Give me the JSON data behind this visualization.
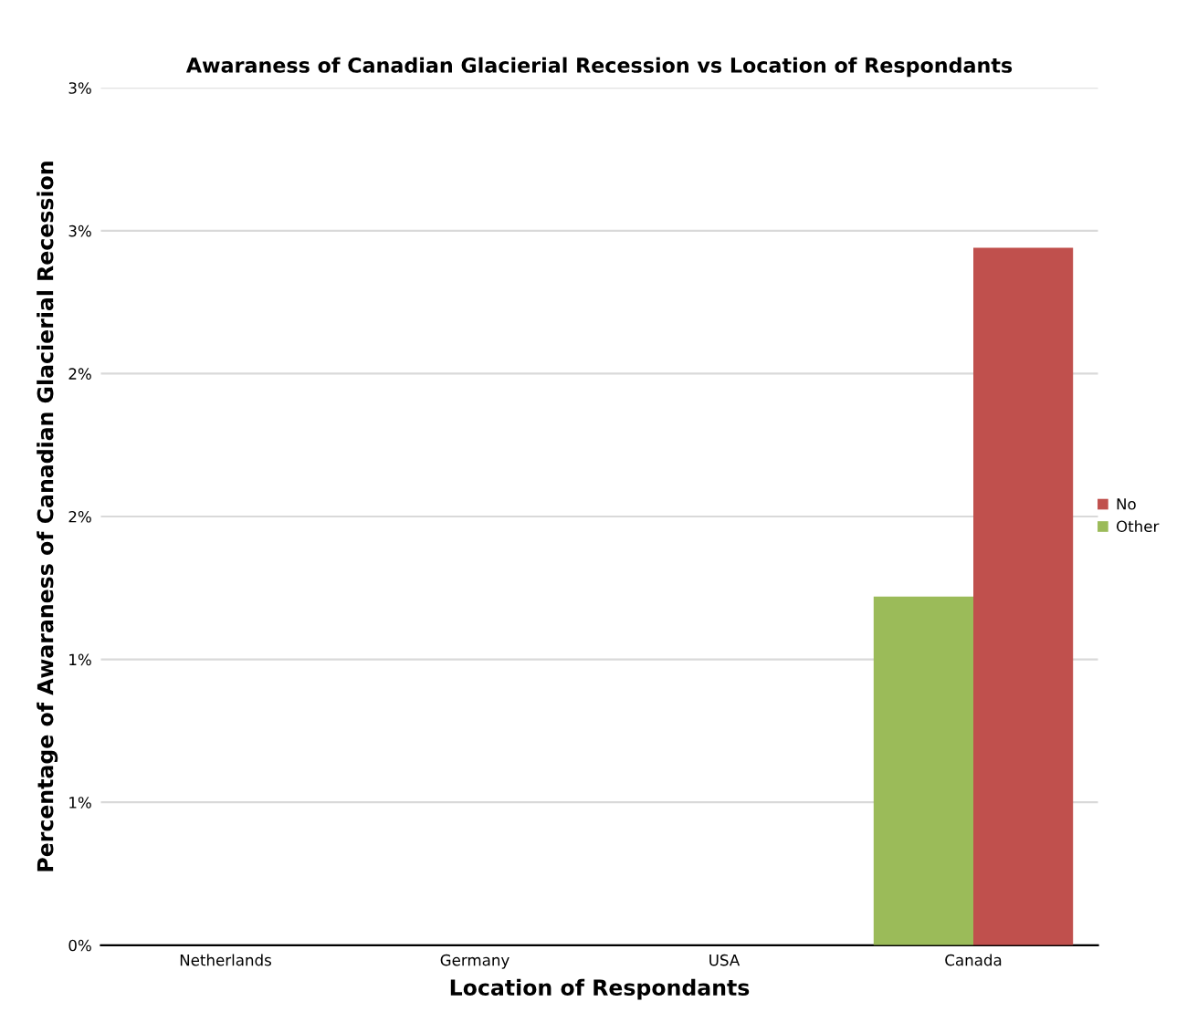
{
  "chart_data": {
    "type": "bar",
    "title": "Awaraness of Canadian Glacierial Recession vs Location of Respondants",
    "xlabel": "Location of Respondants",
    "ylabel": "Percentage of Awaraness of Canadian Glacierial Recession",
    "categories": [
      "Netherlands",
      "Germany",
      "USA",
      "Canada"
    ],
    "series": [
      {
        "name": "Other",
        "color": "#9bbb59",
        "values": [
          0,
          0,
          0,
          1.22
        ]
      },
      {
        "name": "No",
        "color": "#c0504d",
        "values": [
          0,
          0,
          0,
          2.44
        ]
      }
    ],
    "ylim": [
      0,
      3
    ],
    "yticks": [
      {
        "value": 0,
        "label": "0%"
      },
      {
        "value": 0.5,
        "label": "1%"
      },
      {
        "value": 1,
        "label": "1%"
      },
      {
        "value": 1.5,
        "label": "2%"
      },
      {
        "value": 2,
        "label": "2%"
      },
      {
        "value": 2.5,
        "label": "3%"
      },
      {
        "value": 3,
        "label": "3%"
      }
    ],
    "grid": "y",
    "legend": "right"
  }
}
